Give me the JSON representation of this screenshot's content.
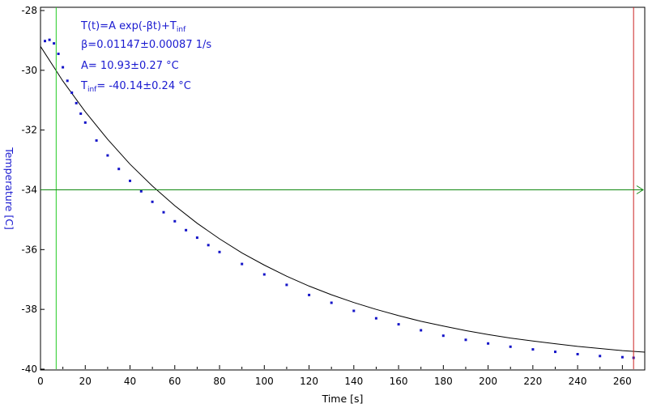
{
  "colors": {
    "data_points": "#1414c8",
    "fit_line": "#000000",
    "annotation_text": "#1a1ad0",
    "ylabel": "#1a1ad0",
    "cursor_vertical_left": "#22cc22",
    "cursor_horizontal": "#118811",
    "cursor_vertical_right": "#cc2222"
  },
  "annotations": {
    "formula_main": "T(t)=A exp(-βt)+T",
    "formula_sub": "inf",
    "beta": "β=0.01147±0.00087 1/s",
    "amplitude": "A= 10.93±0.27 °C",
    "tinf_main": "T",
    "tinf_sub": "inf",
    "tinf_rest": "= -40.14±0.24 °C"
  },
  "cursors": {
    "vertical_left_x": 7,
    "vertical_right_x": 265,
    "horizontal_y": -34
  },
  "chart_data": {
    "type": "scatter",
    "title": "",
    "xlabel": "Time [s]",
    "ylabel": "Temperature [C]",
    "xlim": [
      0,
      270
    ],
    "ylim": [
      -40,
      -28
    ],
    "x_ticks": [
      "0",
      "20",
      "40",
      "60",
      "80",
      "100",
      "120",
      "140",
      "160",
      "180",
      "200",
      "220",
      "240",
      "260"
    ],
    "y_ticks": [
      "-28",
      "-30",
      "-32",
      "-34",
      "-36",
      "-38",
      "-40"
    ],
    "grid": false,
    "series": [
      {
        "kind": "points",
        "x": [
          2,
          4,
          6,
          8,
          10,
          12,
          14,
          16,
          18,
          20,
          25,
          30,
          35,
          40,
          45,
          50,
          55,
          60,
          65,
          70,
          75,
          80,
          90,
          100,
          110,
          120,
          130,
          140,
          150,
          160,
          170,
          180,
          190,
          200,
          210,
          220,
          230,
          240,
          250,
          260,
          265
        ],
        "y": [
          -29.02,
          -28.98,
          -29.1,
          -29.45,
          -29.9,
          -30.35,
          -30.75,
          -31.1,
          -31.45,
          -31.75,
          -32.35,
          -32.85,
          -33.3,
          -33.7,
          -34.05,
          -34.4,
          -34.75,
          -35.05,
          -35.35,
          -35.6,
          -35.85,
          -36.08,
          -36.48,
          -36.83,
          -37.18,
          -37.52,
          -37.78,
          -38.05,
          -38.3,
          -38.5,
          -38.7,
          -38.88,
          -39.02,
          -39.14,
          -39.25,
          -39.34,
          -39.42,
          -39.5,
          -39.56,
          -39.6,
          -39.62
        ]
      },
      {
        "kind": "fit",
        "x": [
          0,
          10,
          20,
          30,
          40,
          50,
          60,
          70,
          80,
          90,
          100,
          110,
          120,
          130,
          140,
          150,
          160,
          170,
          180,
          190,
          200,
          210,
          220,
          230,
          240,
          250,
          260,
          270
        ],
        "y": [
          -29.2,
          -30.36,
          -31.39,
          -32.31,
          -33.14,
          -33.87,
          -34.53,
          -35.12,
          -35.64,
          -36.11,
          -36.52,
          -36.89,
          -37.22,
          -37.51,
          -37.77,
          -38.0,
          -38.21,
          -38.4,
          -38.56,
          -38.71,
          -38.84,
          -38.96,
          -39.06,
          -39.15,
          -39.24,
          -39.31,
          -39.38,
          -39.43
        ]
      }
    ]
  }
}
